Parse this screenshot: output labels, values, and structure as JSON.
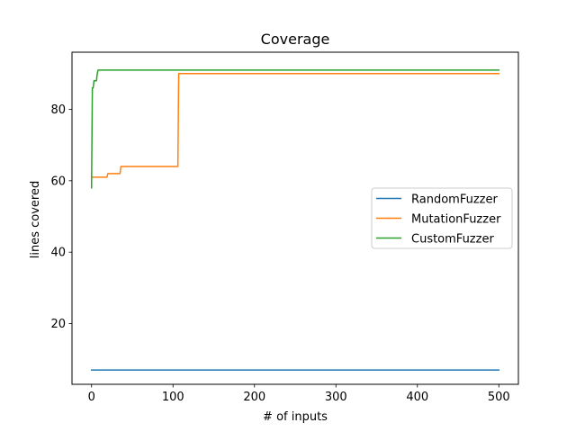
{
  "chart_data": {
    "type": "line",
    "title": "Coverage",
    "xlabel": "# of inputs",
    "ylabel": "lines covered",
    "xlim": [
      -24,
      524
    ],
    "ylim": [
      3,
      96
    ],
    "xticks": [
      0,
      100,
      200,
      300,
      400,
      500
    ],
    "yticks": [
      20,
      40,
      60,
      80
    ],
    "legend_position": "center-right",
    "grid": false,
    "series": [
      {
        "name": "RandomFuzzer",
        "color": "#1f77b4",
        "points": [
          [
            0,
            7
          ],
          [
            500,
            7
          ]
        ]
      },
      {
        "name": "MutationFuzzer",
        "color": "#ff7f0e",
        "points": [
          [
            0,
            61
          ],
          [
            19,
            61
          ],
          [
            20,
            62
          ],
          [
            35,
            62
          ],
          [
            36,
            64
          ],
          [
            106,
            64
          ],
          [
            107,
            90
          ],
          [
            500,
            90
          ]
        ]
      },
      {
        "name": "CustomFuzzer",
        "color": "#2ca02c",
        "points": [
          [
            0,
            58
          ],
          [
            1,
            86
          ],
          [
            2,
            86
          ],
          [
            3,
            88
          ],
          [
            6,
            88
          ],
          [
            7,
            90
          ],
          [
            8,
            91
          ],
          [
            500,
            91
          ]
        ]
      }
    ]
  }
}
